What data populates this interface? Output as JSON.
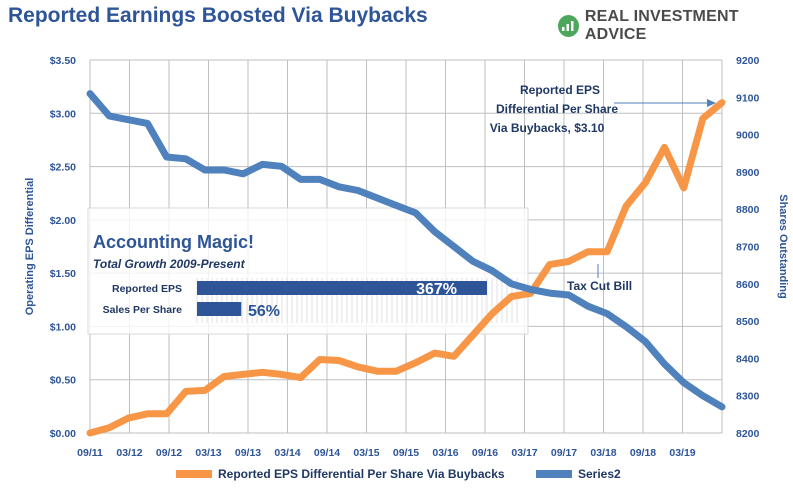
{
  "header": {
    "title": "Reported Earnings Boosted Via Buybacks",
    "brand": "REAL INVESTMENT ADVICE"
  },
  "chart_data": {
    "type": "line",
    "title": "Reported Earnings Boosted Via Buybacks",
    "x_ticks": [
      "09/11",
      "03/12",
      "09/12",
      "03/13",
      "09/13",
      "03/14",
      "09/14",
      "03/15",
      "09/15",
      "03/16",
      "09/16",
      "03/17",
      "09/17",
      "03/18",
      "09/18",
      "03/19"
    ],
    "ylabel_left": "Operating EPS Differential",
    "ylabel_right": "Shares Outstanding",
    "yticks_left": [
      "$0.00",
      "$0.50",
      "$1.00",
      "$1.50",
      "$2.00",
      "$2.50",
      "$3.00",
      "$3.50"
    ],
    "yticks_right": [
      "8200",
      "8300",
      "8400",
      "8500",
      "8600",
      "8700",
      "8800",
      "8900",
      "9000",
      "9100",
      "9200"
    ],
    "ylim_left": [
      0,
      3.5
    ],
    "ylim_right": [
      8200,
      9200
    ],
    "series": [
      {
        "name": "Reported EPS Differential Per Share Via Buybacks",
        "axis": "left",
        "color": "#f79646",
        "values": [
          0.0,
          0.05,
          0.14,
          0.18,
          0.18,
          0.39,
          0.4,
          0.53,
          0.55,
          0.57,
          0.55,
          0.52,
          0.69,
          0.68,
          0.62,
          0.58,
          0.58,
          0.66,
          0.75,
          0.72,
          0.92,
          1.12,
          1.28,
          1.31,
          1.58,
          1.61,
          1.7,
          1.7,
          2.13,
          2.35,
          2.68,
          2.3,
          2.95,
          3.1
        ]
      },
      {
        "name": "Series2",
        "axis": "right",
        "color": "#4f81bd",
        "values": [
          9110,
          9050,
          9040,
          9030,
          8940,
          8935,
          8905,
          8905,
          8895,
          8920,
          8915,
          8880,
          8880,
          8860,
          8850,
          8830,
          8810,
          8790,
          8740,
          8700,
          8660,
          8635,
          8600,
          8585,
          8575,
          8570,
          8540,
          8520,
          8485,
          8445,
          8385,
          8335,
          8300,
          8270
        ]
      }
    ],
    "annotations": {
      "eps_label": [
        "Reported EPS",
        "Differential Per Share",
        "Via Buybacks,  $3.10"
      ],
      "tax_cut": "Tax Cut Bill"
    },
    "inset": {
      "title": "Accounting Magic!",
      "subtitle": "Total Growth 2009-Present",
      "bars": [
        {
          "label": "Reported EPS",
          "value": 367,
          "display": "367%"
        },
        {
          "label": "Sales Per Share",
          "value": 56,
          "display": "56%"
        }
      ]
    },
    "legend": [
      "Reported EPS Differential Per Share Via Buybacks",
      "Series2"
    ],
    "legend_position": "bottom"
  }
}
